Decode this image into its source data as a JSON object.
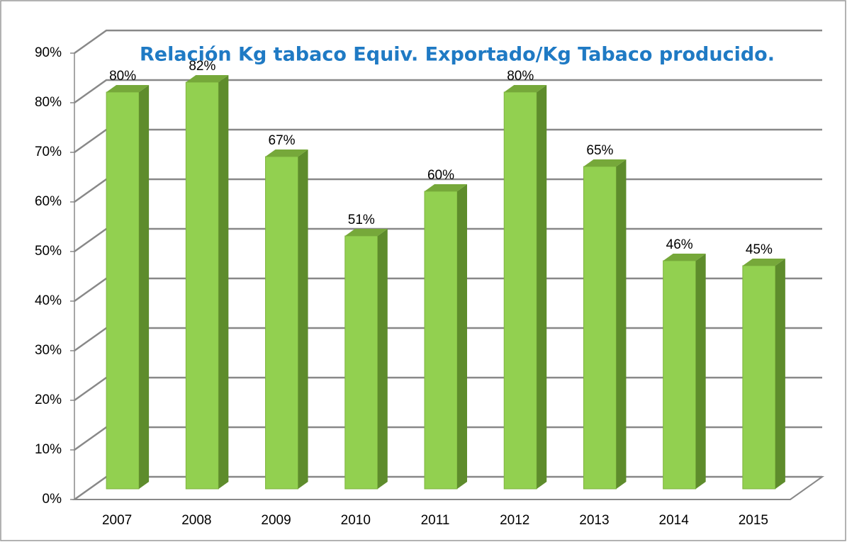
{
  "chart_data": {
    "type": "bar3d",
    "title": "Relación Kg tabaco Equiv. Exportado/Kg Tabaco producido.",
    "categories": [
      "2007",
      "2008",
      "2009",
      "2010",
      "2011",
      "2012",
      "2013",
      "2014",
      "2015"
    ],
    "values": [
      80,
      82,
      67,
      51,
      60,
      80,
      65,
      46,
      45
    ],
    "value_labels": [
      "80%",
      "82%",
      "67%",
      "51%",
      "60%",
      "80%",
      "65%",
      "46%",
      "45%"
    ],
    "color": "#92d050",
    "ylim": [
      0,
      90
    ],
    "yticks": [
      {
        "value": 0,
        "label": "0%"
      },
      {
        "value": 10,
        "label": "10%"
      },
      {
        "value": 20,
        "label": "20%"
      },
      {
        "value": 30,
        "label": "30%"
      },
      {
        "value": 40,
        "label": "40%"
      },
      {
        "value": 50,
        "label": "50%"
      },
      {
        "value": 60,
        "label": "60%"
      },
      {
        "value": 70,
        "label": "70%"
      },
      {
        "value": 80,
        "label": "80%"
      },
      {
        "value": 90,
        "label": "90%"
      }
    ],
    "grid": true
  }
}
